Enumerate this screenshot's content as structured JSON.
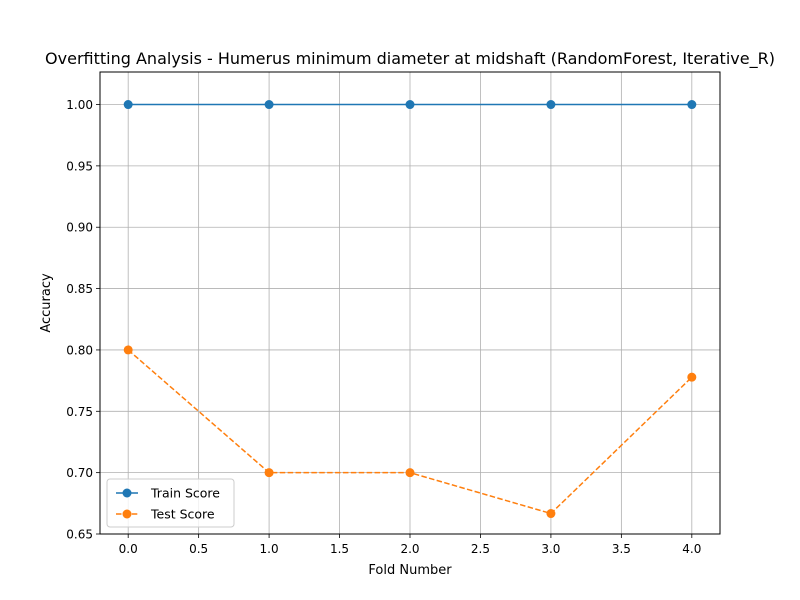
{
  "chart_data": {
    "type": "line",
    "title": "Overfitting Analysis - Humerus minimum diameter at midshaft (RandomForest, Iterative_R)",
    "xlabel": "Fold Number",
    "ylabel": "Accuracy",
    "x": [
      0,
      1,
      2,
      3,
      4
    ],
    "xlim": [
      -0.2,
      4.2
    ],
    "ylim": [
      0.65,
      1.0265
    ],
    "x_ticks": [
      "0.0",
      "0.5",
      "1.0",
      "1.5",
      "2.0",
      "2.5",
      "3.0",
      "3.5",
      "4.0"
    ],
    "y_ticks": [
      "0.65",
      "0.70",
      "0.75",
      "0.80",
      "0.85",
      "0.90",
      "0.95",
      "1.00"
    ],
    "grid": true,
    "legend_position": "lower-left",
    "series": [
      {
        "name": "Train Score",
        "values": [
          1.0,
          1.0,
          1.0,
          1.0,
          1.0
        ],
        "color": "#1f77b4",
        "line_style": "solid",
        "marker": "circle"
      },
      {
        "name": "Test Score",
        "values": [
          0.8,
          0.7,
          0.7,
          0.6667,
          0.7778
        ],
        "color": "#ff7f0e",
        "line_style": "dashed",
        "marker": "circle"
      }
    ]
  }
}
